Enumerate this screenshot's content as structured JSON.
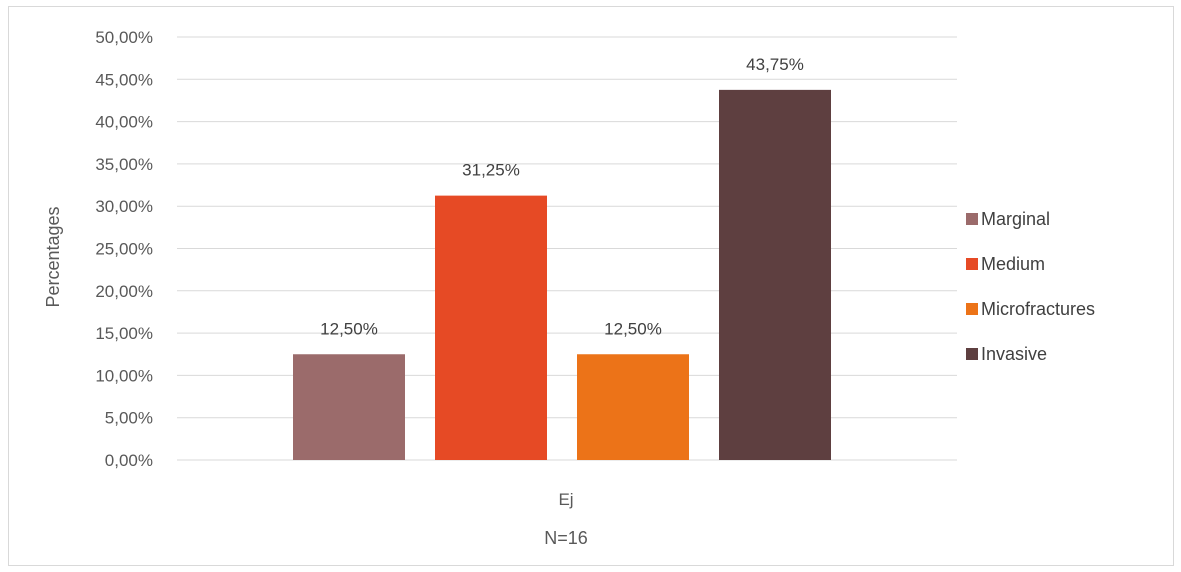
{
  "chart_data": {
    "type": "bar",
    "categories": [
      "Ej"
    ],
    "series": [
      {
        "name": "Marginal",
        "values": [
          12.5
        ],
        "label": "12,50%",
        "color": "#9b6b6b"
      },
      {
        "name": "Medium",
        "values": [
          31.25
        ],
        "label": "31,25%",
        "color": "#e64a25"
      },
      {
        "name": "Microfractures",
        "values": [
          12.5
        ],
        "label": "12,50%",
        "color": "#ec7318"
      },
      {
        "name": "Invasive",
        "values": [
          43.75
        ],
        "label": "43,75%",
        "color": "#5e3f40"
      }
    ],
    "title": "",
    "xlabel": "N=16",
    "ylabel": "Percentages",
    "ylim": [
      0,
      50
    ],
    "y_ticks": [
      0,
      5,
      10,
      15,
      20,
      25,
      30,
      35,
      40,
      45,
      50
    ],
    "y_tick_labels": [
      "0,00%",
      "5,00%",
      "10,00%",
      "15,00%",
      "20,00%",
      "25,00%",
      "30,00%",
      "35,00%",
      "40,00%",
      "45,00%",
      "50,00%"
    ],
    "grid": true,
    "legend_position": "right",
    "gridline_color": "#d9d9d9"
  }
}
